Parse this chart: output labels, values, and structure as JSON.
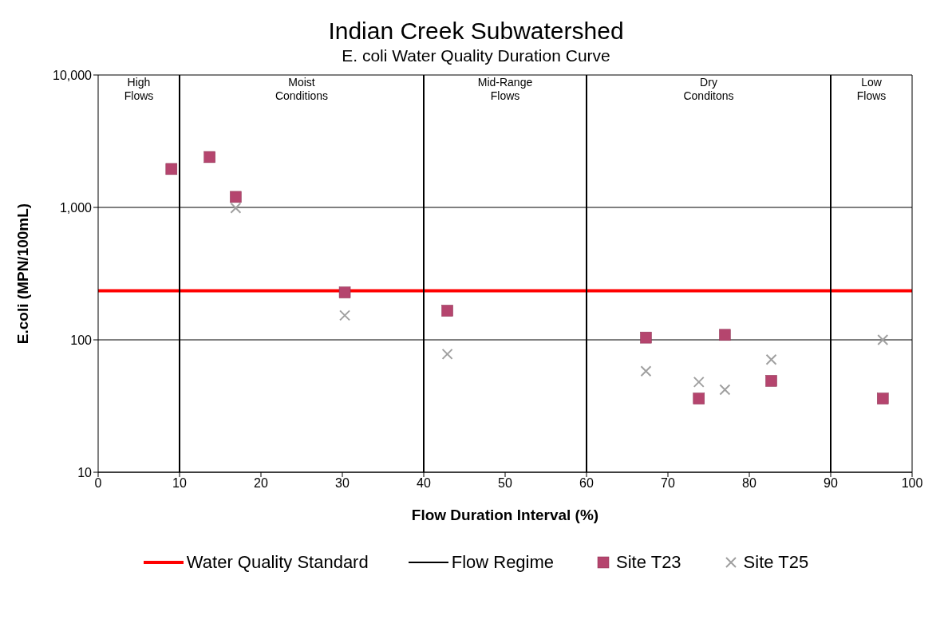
{
  "chart_data": {
    "type": "scatter",
    "title": "Indian Creek Subwatershed",
    "subtitle": "E. coli Water Quality Duration Curve",
    "xlabel": "Flow Duration Interval (%)",
    "ylabel": "E.coli (MPN/100mL)",
    "log": "y",
    "grid": "y",
    "legend": "bottom",
    "xlim": [
      0,
      100
    ],
    "xticks": [
      0,
      10,
      20,
      30,
      40,
      50,
      60,
      70,
      80,
      90,
      100
    ],
    "ylim": [
      10,
      10000
    ],
    "yticks": [
      10,
      100,
      {
        "value": 1000,
        "label": "1,000"
      },
      {
        "value": 10000,
        "label": "10,000"
      }
    ],
    "series": [
      {
        "name": "Site T23",
        "color": "#b5456e",
        "marker": "square",
        "x": [
          9,
          13.7,
          16.9,
          30.3,
          42.9,
          67.3,
          73.8,
          77,
          82.7,
          96.4
        ],
        "values": [
          1950,
          2400,
          1200,
          228,
          166,
          104,
          36,
          109,
          49,
          36
        ]
      },
      {
        "name": "Site T25",
        "color": "#a0a0a0",
        "marker": "cross",
        "x": [
          16.9,
          30.3,
          42.9,
          67.3,
          73.8,
          77,
          82.7,
          96.4
        ],
        "values": [
          990,
          153,
          78,
          58,
          48,
          42,
          71,
          100
        ]
      }
    ],
    "ref_lines": [
      {
        "axis": "y",
        "value": 235,
        "label": "Water Quality Standard",
        "color": "#ff0000"
      },
      {
        "axis": "x",
        "value": 10,
        "label": "Flow Regime",
        "color": "#000000"
      },
      {
        "axis": "x",
        "value": 40,
        "label": null,
        "color": "#000000"
      },
      {
        "axis": "x",
        "value": 60,
        "label": null,
        "color": "#000000"
      },
      {
        "axis": "x",
        "value": 90,
        "label": null,
        "color": "#000000"
      }
    ],
    "annotations": [
      "High\nFlows",
      "Moist\nConditions",
      "Mid-Range\nFlows",
      "Dry\nConditons",
      "Low\nFlows"
    ]
  }
}
